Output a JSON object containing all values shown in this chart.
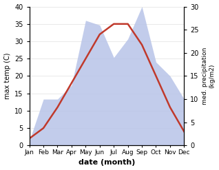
{
  "months": [
    "Jan",
    "Feb",
    "Mar",
    "Apr",
    "May",
    "Jun",
    "Jul",
    "Aug",
    "Sep",
    "Oct",
    "Nov",
    "Dec"
  ],
  "temp": [
    2,
    5,
    11,
    18,
    25,
    32,
    35,
    35,
    29,
    20,
    11,
    4
  ],
  "precip": [
    1,
    10,
    10,
    13,
    27,
    26,
    19,
    23,
    30,
    18,
    15,
    10
  ],
  "temp_color": "#c0392b",
  "precip_fill_color": "#b8c4e8",
  "xlabel": "date (month)",
  "ylabel_left": "max temp (C)",
  "ylabel_right": "med. precipitation\n(kg/m2)",
  "ylim_left": [
    0,
    40
  ],
  "ylim_right": [
    0,
    30
  ],
  "bg_color": "#ffffff",
  "temp_lw": 1.8
}
